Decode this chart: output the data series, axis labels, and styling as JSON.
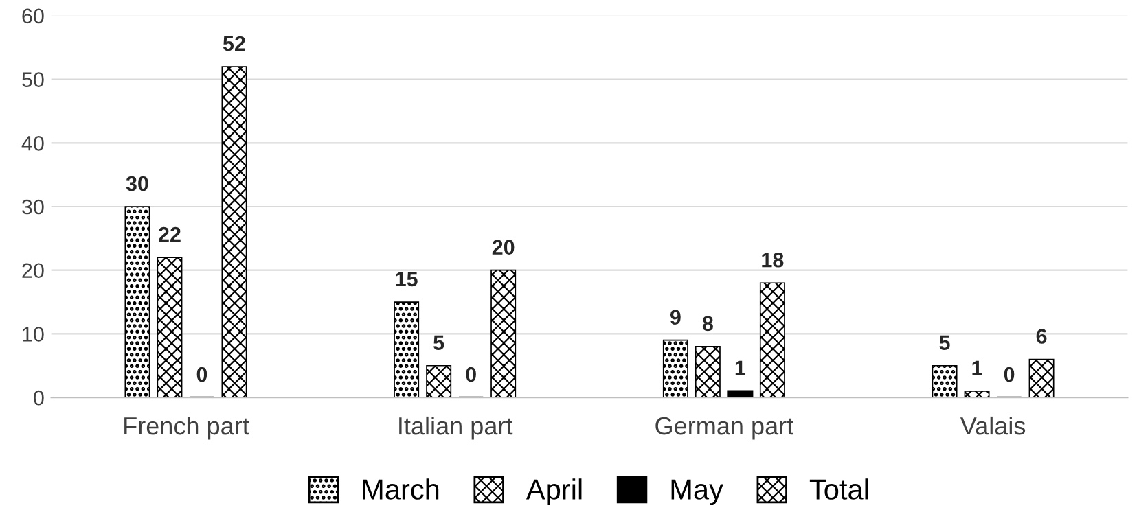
{
  "chart_data": {
    "type": "bar",
    "categories": [
      "French part",
      "Italian part",
      "German part",
      "Valais"
    ],
    "series": [
      {
        "name": "March",
        "color": "#000000",
        "values": [
          30,
          15,
          9,
          5
        ]
      },
      {
        "name": "April",
        "color": "#000000",
        "values": [
          22,
          5,
          8,
          1
        ]
      },
      {
        "name": "May",
        "color": "#000000",
        "values": [
          0,
          0,
          1,
          0
        ]
      },
      {
        "name": "Total",
        "color": "#000000",
        "values": [
          52,
          20,
          18,
          6
        ]
      }
    ],
    "ylim": [
      0,
      60
    ],
    "yticks": [
      0,
      10,
      20,
      30,
      40,
      50,
      60
    ],
    "grid": "y",
    "legend": "bottom",
    "data_labels": true
  }
}
